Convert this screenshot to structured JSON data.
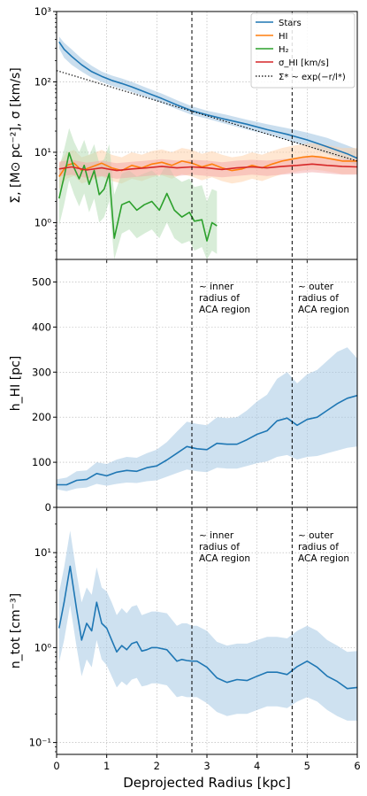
{
  "colors": {
    "stars": "#1f77b4",
    "hi": "#ff7f0e",
    "h2": "#2ca02c",
    "sigma": "#d62728",
    "fit": "#000000",
    "band_stars": "#a6c8e3",
    "band_hi": "#ffcfa6",
    "band_h2": "#b2dcb2",
    "band_sigma": "#f4a5a5"
  },
  "xaxis": {
    "label": "Deprojected Radius [kpc]",
    "ticks": [
      0,
      1,
      2,
      3,
      4,
      5,
      6
    ],
    "tick_labels": [
      "0",
      "1",
      "2",
      "3",
      "4",
      "5",
      "6"
    ],
    "range": [
      0,
      6
    ]
  },
  "annotations": {
    "vline_x": [
      2.7,
      4.7
    ],
    "inner": [
      "~ inner",
      "radius of",
      "ACA region"
    ],
    "outer": [
      "~ outer",
      "radius of",
      "ACA region"
    ]
  },
  "chart_data": [
    {
      "type": "line",
      "panel": "surface-density",
      "ylabel": "Σ, [M⊙ pc⁻²], σ [km/s]",
      "yscale": "log",
      "ylim": [
        0.3,
        1000
      ],
      "ytick_values": [
        1,
        10,
        100,
        1000
      ],
      "ytick_labels": [
        "10⁰",
        "10¹",
        "10²",
        "10³"
      ],
      "grid": true,
      "legend_position": "top-right",
      "legend": [
        "Stars",
        "HI",
        "H₂",
        "σ_HI [km/s]",
        "Σ* ~ exp(−r/l*)"
      ],
      "series": [
        {
          "name": "Stars",
          "x": [
            0.05,
            0.15,
            0.3,
            0.5,
            0.7,
            0.9,
            1.1,
            1.3,
            1.5,
            1.8,
            2.1,
            2.4,
            2.7,
            3.0,
            3.4,
            3.8,
            4.2,
            4.6,
            5.0,
            5.4,
            5.8,
            6.0
          ],
          "y": [
            370,
            290,
            230,
            175,
            140,
            120,
            105,
            95,
            85,
            70,
            58,
            47,
            39,
            34,
            29,
            25,
            21,
            18,
            15,
            12,
            9.5,
            8.2
          ],
          "y_low": [
            300,
            220,
            175,
            140,
            115,
            100,
            88,
            80,
            72,
            60,
            50,
            41,
            34,
            30,
            25,
            21,
            18,
            15,
            12,
            9.5,
            7.5,
            6.5
          ],
          "y_high": [
            440,
            360,
            290,
            215,
            170,
            140,
            123,
            112,
            100,
            82,
            68,
            55,
            45,
            39,
            34,
            29,
            25,
            22,
            19,
            16,
            12.5,
            11
          ]
        },
        {
          "name": "HI",
          "x": [
            0.05,
            0.2,
            0.35,
            0.5,
            0.7,
            0.9,
            1.1,
            1.3,
            1.5,
            1.7,
            1.9,
            2.1,
            2.3,
            2.5,
            2.7,
            2.9,
            3.1,
            3.3,
            3.5,
            3.7,
            3.9,
            4.1,
            4.3,
            4.5,
            4.7,
            4.9,
            5.1,
            5.3,
            5.5,
            5.7,
            5.9,
            6.0
          ],
          "y": [
            4.5,
            6.5,
            7.0,
            5.5,
            6.2,
            7.0,
            6.0,
            5.5,
            6.5,
            6.0,
            6.8,
            7.2,
            6.5,
            7.5,
            7.0,
            6.2,
            6.8,
            6.0,
            5.5,
            5.8,
            6.5,
            6.0,
            6.8,
            7.5,
            8.0,
            8.5,
            8.8,
            8.5,
            8.0,
            7.5,
            7.5,
            7.5
          ],
          "y_low": [
            3.0,
            4.2,
            4.6,
            3.6,
            4.0,
            4.5,
            3.9,
            3.6,
            4.2,
            3.9,
            4.4,
            4.7,
            4.2,
            4.9,
            4.5,
            4.0,
            4.4,
            3.9,
            3.6,
            3.8,
            4.2,
            3.9,
            4.4,
            4.9,
            5.2,
            5.5,
            5.7,
            5.5,
            5.2,
            4.9,
            4.9,
            4.9
          ],
          "y_high": [
            6.8,
            10,
            10.8,
            8.5,
            9.5,
            10.8,
            9.2,
            8.5,
            10,
            9.2,
            10.4,
            11,
            10,
            11.5,
            10.8,
            9.5,
            10.4,
            9.2,
            8.5,
            8.9,
            10,
            9.2,
            10.4,
            11.5,
            12.3,
            13,
            13.5,
            13,
            12.3,
            11.5,
            11.5,
            11.5
          ]
        },
        {
          "name": "H₂",
          "x": [
            0.05,
            0.15,
            0.25,
            0.35,
            0.45,
            0.55,
            0.65,
            0.75,
            0.85,
            0.95,
            1.05,
            1.15,
            1.3,
            1.45,
            1.6,
            1.75,
            1.9,
            2.05,
            2.2,
            2.35,
            2.5,
            2.65,
            2.75,
            2.9,
            3.0,
            3.1,
            3.2
          ],
          "y": [
            2.2,
            4.5,
            9.8,
            6.0,
            4.2,
            6.5,
            3.5,
            5.5,
            2.5,
            3.0,
            5.0,
            0.6,
            1.8,
            2.0,
            1.5,
            1.8,
            2.0,
            1.5,
            2.6,
            1.5,
            1.2,
            1.4,
            1.05,
            1.1,
            0.55,
            1.0,
            0.9
          ],
          "y_low": [
            0.9,
            1.8,
            4.0,
            2.5,
            1.7,
            2.6,
            1.4,
            2.2,
            1.0,
            1.2,
            2.0,
            0.3,
            0.7,
            0.8,
            0.6,
            0.7,
            0.8,
            0.6,
            1.0,
            0.6,
            0.5,
            0.55,
            0.4,
            0.45,
            0.3,
            0.4,
            0.36
          ],
          "y_high": [
            6,
            11,
            22,
            14,
            10,
            15,
            9,
            13,
            7,
            8,
            13,
            2.5,
            5,
            5.5,
            4.5,
            5,
            5.5,
            4.5,
            7,
            4.5,
            3.8,
            4.2,
            3.2,
            3.4,
            2.0,
            3.0,
            2.8
          ]
        },
        {
          "name": "σ_HI [km/s]",
          "x": [
            0.05,
            0.3,
            0.6,
            0.9,
            1.2,
            1.5,
            1.8,
            2.1,
            2.4,
            2.7,
            3.0,
            3.3,
            3.6,
            3.9,
            4.2,
            4.5,
            4.8,
            5.1,
            5.4,
            5.7,
            6.0
          ],
          "y": [
            5.8,
            6.2,
            5.6,
            6.0,
            5.5,
            5.8,
            6.0,
            6.3,
            6.0,
            6.2,
            6.0,
            5.7,
            6.0,
            6.2,
            6.0,
            6.3,
            6.5,
            6.8,
            6.5,
            6.3,
            6.2
          ],
          "y_low": [
            4.5,
            4.8,
            4.3,
            4.6,
            4.2,
            4.4,
            4.6,
            4.8,
            4.6,
            4.8,
            4.6,
            4.4,
            4.6,
            4.8,
            4.6,
            4.8,
            5.0,
            5.2,
            5.0,
            4.8,
            4.8
          ],
          "y_high": [
            7.3,
            7.8,
            7.1,
            7.6,
            7.0,
            7.3,
            7.6,
            8.0,
            7.6,
            7.8,
            7.6,
            7.2,
            7.6,
            7.8,
            7.6,
            8.0,
            8.3,
            8.6,
            8.3,
            8.0,
            7.9
          ]
        },
        {
          "name": "Σ* ~ exp(−r/l*)",
          "x": [
            0.0,
            6.0
          ],
          "y": [
            145,
            7.5
          ]
        }
      ]
    },
    {
      "type": "line",
      "panel": "hi-scale-height",
      "ylabel": "h_HI [pc]",
      "yscale": "linear",
      "ylim": [
        0,
        550
      ],
      "ytick_values": [
        0,
        100,
        200,
        300,
        400,
        500
      ],
      "ytick_labels": [
        "0",
        "100",
        "200",
        "300",
        "400",
        "500"
      ],
      "grid": true,
      "series": [
        {
          "name": "h_HI",
          "x": [
            0.0,
            0.2,
            0.4,
            0.6,
            0.8,
            1.0,
            1.2,
            1.4,
            1.6,
            1.8,
            2.0,
            2.2,
            2.4,
            2.6,
            2.8,
            3.0,
            3.2,
            3.4,
            3.6,
            3.8,
            4.0,
            4.2,
            4.4,
            4.6,
            4.8,
            5.0,
            5.2,
            5.4,
            5.6,
            5.8,
            6.0
          ],
          "y": [
            50,
            50,
            60,
            62,
            75,
            70,
            78,
            82,
            80,
            88,
            92,
            105,
            120,
            135,
            130,
            128,
            142,
            140,
            140,
            150,
            162,
            170,
            192,
            198,
            182,
            195,
            200,
            215,
            230,
            242,
            248
          ],
          "y_low": [
            40,
            36,
            42,
            44,
            52,
            48,
            52,
            55,
            54,
            58,
            60,
            68,
            76,
            84,
            80,
            78,
            88,
            86,
            86,
            92,
            98,
            102,
            112,
            116,
            106,
            112,
            114,
            120,
            126,
            132,
            135
          ],
          "y_high": [
            62,
            66,
            80,
            82,
            100,
            96,
            106,
            112,
            110,
            120,
            128,
            145,
            168,
            190,
            185,
            182,
            200,
            198,
            200,
            215,
            235,
            250,
            285,
            300,
            275,
            295,
            305,
            325,
            345,
            355,
            330
          ]
        }
      ]
    },
    {
      "type": "line",
      "panel": "total-density",
      "ylabel": "n_tot [cm⁻³]",
      "yscale": "log",
      "ylim": [
        0.075,
        30
      ],
      "ytick_values": [
        0.1,
        1,
        10
      ],
      "ytick_labels": [
        "10⁻¹",
        "10⁰",
        "10¹"
      ],
      "grid": true,
      "series": [
        {
          "name": "n_tot",
          "x": [
            0.05,
            0.15,
            0.27,
            0.4,
            0.5,
            0.6,
            0.7,
            0.8,
            0.9,
            1.0,
            1.1,
            1.2,
            1.3,
            1.4,
            1.5,
            1.6,
            1.7,
            1.8,
            1.9,
            2.0,
            2.2,
            2.4,
            2.5,
            2.6,
            2.7,
            2.8,
            3.0,
            3.2,
            3.4,
            3.6,
            3.8,
            4.0,
            4.2,
            4.4,
            4.6,
            4.8,
            5.0,
            5.2,
            5.4,
            5.6,
            5.8,
            6.0
          ],
          "y": [
            1.6,
            3.0,
            7.2,
            2.5,
            1.2,
            1.8,
            1.5,
            3.0,
            1.8,
            1.6,
            1.2,
            0.9,
            1.05,
            0.95,
            1.1,
            1.15,
            0.92,
            0.95,
            1.0,
            1.0,
            0.95,
            0.72,
            0.75,
            0.73,
            0.72,
            0.72,
            0.62,
            0.48,
            0.43,
            0.46,
            0.45,
            0.5,
            0.55,
            0.55,
            0.52,
            0.63,
            0.72,
            0.62,
            0.5,
            0.44,
            0.37,
            0.38
          ],
          "y_low": [
            0.7,
            1.2,
            2.8,
            1.0,
            0.5,
            0.75,
            0.62,
            1.2,
            0.75,
            0.65,
            0.5,
            0.38,
            0.44,
            0.4,
            0.46,
            0.48,
            0.39,
            0.4,
            0.42,
            0.42,
            0.4,
            0.3,
            0.31,
            0.3,
            0.3,
            0.3,
            0.26,
            0.21,
            0.19,
            0.2,
            0.2,
            0.22,
            0.24,
            0.24,
            0.23,
            0.27,
            0.3,
            0.27,
            0.22,
            0.19,
            0.17,
            0.17
          ],
          "y_high": [
            3.8,
            7,
            17,
            6,
            3.0,
            4.3,
            3.6,
            7,
            4.3,
            3.9,
            3.0,
            2.2,
            2.6,
            2.3,
            2.7,
            2.8,
            2.2,
            2.3,
            2.4,
            2.4,
            2.3,
            1.7,
            1.8,
            1.8,
            1.7,
            1.7,
            1.5,
            1.15,
            1.05,
            1.1,
            1.1,
            1.2,
            1.3,
            1.3,
            1.25,
            1.5,
            1.7,
            1.5,
            1.2,
            1.05,
            0.9,
            0.92
          ]
        }
      ]
    }
  ]
}
